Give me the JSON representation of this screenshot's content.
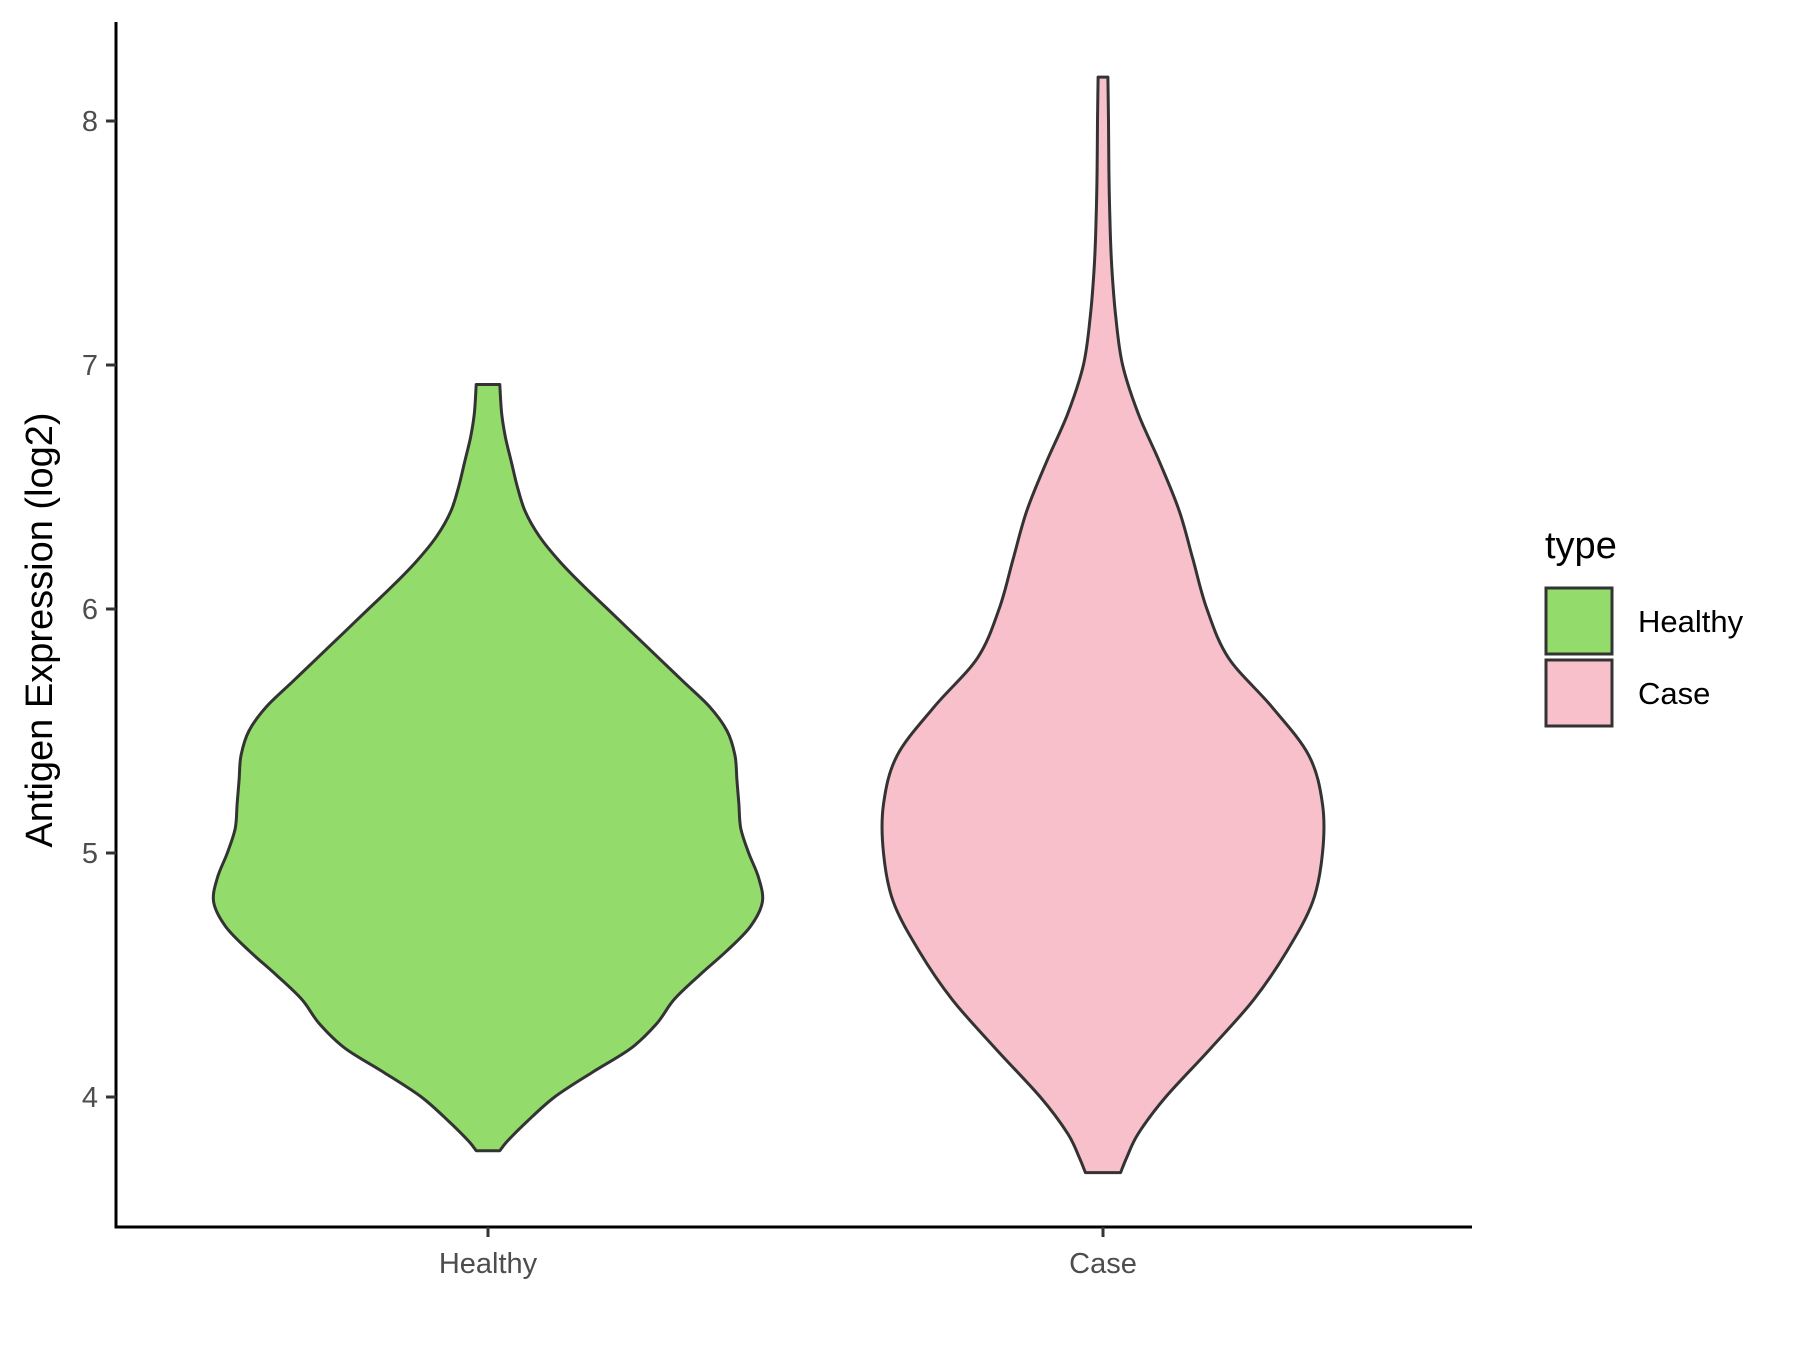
{
  "chart_data": {
    "type": "violin",
    "ylabel": "Antigen Expression (log2)",
    "xlabel": "",
    "categories": [
      "Healthy",
      "Case"
    ],
    "ylim": [
      3.45,
      8.4
    ],
    "yticks": [
      4,
      5,
      6,
      7,
      8
    ],
    "grid": false,
    "legend": {
      "title": "type",
      "placement": "right",
      "entries": [
        {
          "label": "Healthy",
          "color": "#93dc6b"
        },
        {
          "label": "Case",
          "color": "#f8c0cb"
        }
      ]
    },
    "series": [
      {
        "category": "Healthy",
        "color": "#93dc6b",
        "density_profile": {
          "y": [
            3.78,
            3.82,
            3.9,
            4.0,
            4.1,
            4.2,
            4.3,
            4.4,
            4.5,
            4.6,
            4.7,
            4.8,
            4.9,
            5.0,
            5.1,
            5.2,
            5.3,
            5.4,
            5.5,
            5.6,
            5.7,
            5.8,
            5.9,
            6.0,
            6.1,
            6.2,
            6.3,
            6.4,
            6.5,
            6.6,
            6.7,
            6.8,
            6.92
          ],
          "half_width": [
            0.06,
            0.1,
            0.2,
            0.34,
            0.53,
            0.73,
            0.86,
            0.95,
            1.08,
            1.22,
            1.34,
            1.4,
            1.38,
            1.33,
            1.29,
            1.28,
            1.27,
            1.26,
            1.22,
            1.13,
            1.0,
            0.87,
            0.74,
            0.61,
            0.48,
            0.36,
            0.26,
            0.19,
            0.15,
            0.12,
            0.09,
            0.07,
            0.06
          ]
        }
      },
      {
        "category": "Case",
        "color": "#f8c0cb",
        "density_profile": {
          "y": [
            3.69,
            3.75,
            3.85,
            4.0,
            4.2,
            4.4,
            4.6,
            4.8,
            5.0,
            5.2,
            5.4,
            5.6,
            5.8,
            6.0,
            6.2,
            6.4,
            6.6,
            6.8,
            7.0,
            7.2,
            7.4,
            7.6,
            7.8,
            8.0,
            8.18
          ],
          "half_width": [
            0.09,
            0.12,
            0.18,
            0.32,
            0.55,
            0.77,
            0.94,
            1.07,
            1.12,
            1.12,
            1.05,
            0.86,
            0.64,
            0.53,
            0.46,
            0.39,
            0.29,
            0.18,
            0.1,
            0.065,
            0.045,
            0.035,
            0.03,
            0.028,
            0.025
          ]
        }
      }
    ]
  }
}
